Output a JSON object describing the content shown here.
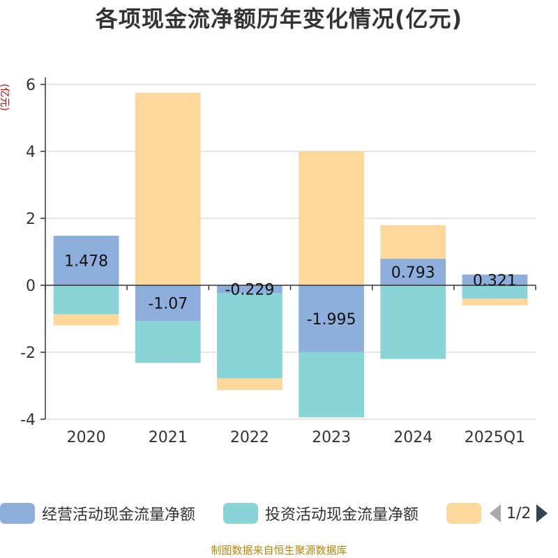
{
  "chart_data": {
    "type": "bar",
    "stacked": true,
    "title": "各项现金流净额历年变化情况(亿元)",
    "ylabel": "(亿元)",
    "ylim": [
      -4,
      6
    ],
    "yticks": [
      -4,
      -2,
      0,
      2,
      4,
      6
    ],
    "categories": [
      "2020",
      "2021",
      "2022",
      "2023",
      "2024",
      "2025Q1"
    ],
    "grid": true,
    "legend_position": "bottom",
    "series": [
      {
        "name": "经营活动现金流量净额",
        "color": "#8eaedb",
        "values": [
          1.478,
          -1.07,
          -0.229,
          -1.995,
          0.793,
          0.321
        ],
        "labels": [
          "1.478",
          "-1.07",
          "-0.229",
          "-1.995",
          "0.793",
          "0.321"
        ]
      },
      {
        "name": "投资活动现金流量净额",
        "color": "#88d4d6",
        "values": [
          -0.87,
          -1.25,
          -2.55,
          -1.95,
          -2.2,
          -0.4
        ]
      },
      {
        "name": "",
        "color": "#fdd89a",
        "values": [
          -0.33,
          5.75,
          -0.35,
          4.0,
          1.0,
          -0.2
        ]
      }
    ]
  },
  "legend": {
    "page_indicator": "1/2",
    "prev_icon": "triangle-left-icon",
    "next_icon": "triangle-right-icon"
  },
  "source_note": "制图数据来自恒生聚源数据库"
}
